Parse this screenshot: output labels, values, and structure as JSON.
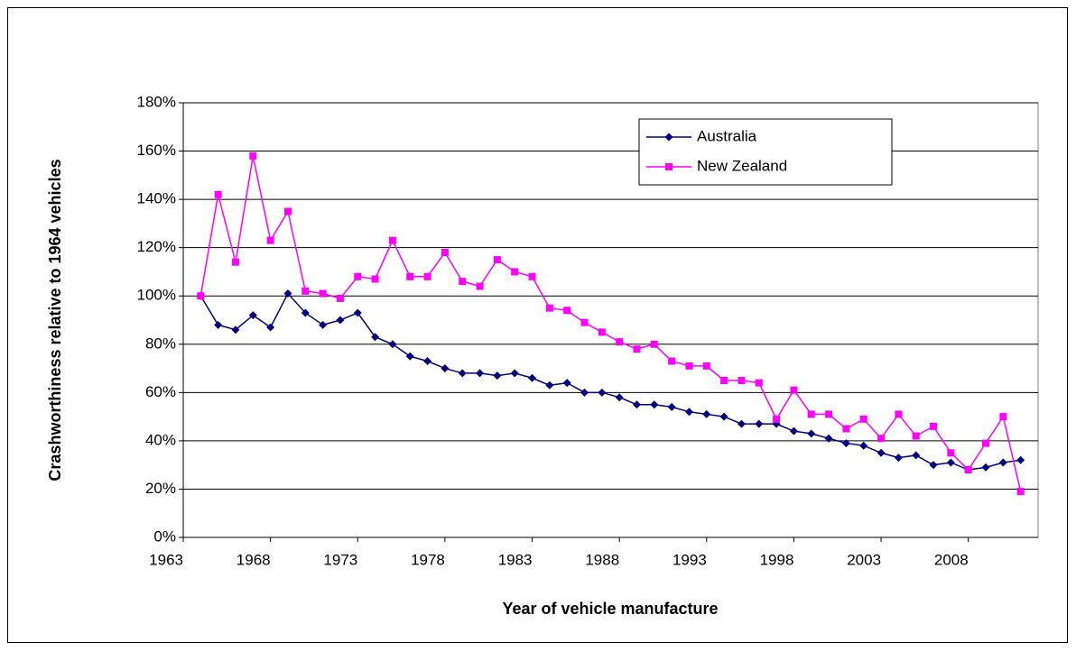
{
  "chart_data": {
    "type": "line",
    "xlabel": "Year of vehicle manufacture",
    "ylabel": "Crashworthiness relative to 1964 vehicles",
    "x": [
      1964,
      1965,
      1966,
      1967,
      1968,
      1969,
      1970,
      1971,
      1972,
      1973,
      1974,
      1975,
      1976,
      1977,
      1978,
      1979,
      1980,
      1981,
      1982,
      1983,
      1984,
      1985,
      1986,
      1987,
      1988,
      1989,
      1990,
      1991,
      1992,
      1993,
      1994,
      1995,
      1996,
      1997,
      1998,
      1999,
      2000,
      2001,
      2002,
      2003,
      2004,
      2005,
      2006,
      2007,
      2008,
      2009,
      2010,
      2011
    ],
    "series": [
      {
        "name": "Australia",
        "color": "#000080",
        "marker": "diamond",
        "values": [
          100,
          88,
          86,
          92,
          87,
          101,
          93,
          88,
          90,
          93,
          83,
          80,
          75,
          73,
          70,
          68,
          68,
          67,
          68,
          66,
          63,
          64,
          60,
          60,
          58,
          55,
          55,
          54,
          52,
          51,
          50,
          47,
          47,
          47,
          44,
          43,
          41,
          39,
          38,
          35,
          33,
          34,
          30,
          31,
          28,
          29,
          31,
          32
        ]
      },
      {
        "name": "New Zealand",
        "color": "#ff00ff",
        "marker": "square",
        "values": [
          100,
          142,
          114,
          158,
          123,
          135,
          102,
          101,
          99,
          108,
          107,
          123,
          108,
          108,
          118,
          106,
          104,
          115,
          110,
          108,
          95,
          94,
          89,
          85,
          81,
          78,
          80,
          73,
          71,
          71,
          65,
          65,
          64,
          49,
          61,
          51,
          51,
          45,
          49,
          41,
          51,
          42,
          46,
          35,
          28,
          39,
          50,
          19
        ]
      }
    ],
    "xlim": [
      1963,
      2012
    ],
    "xticks": [
      1963,
      1968,
      1973,
      1978,
      1983,
      1988,
      1993,
      1998,
      2003,
      2008
    ],
    "ylim": [
      0,
      180
    ],
    "yticks": [
      {
        "value": 0,
        "label": "0%"
      },
      {
        "value": 20,
        "label": "20%"
      },
      {
        "value": 40,
        "label": "40%"
      },
      {
        "value": 60,
        "label": "60%"
      },
      {
        "value": 80,
        "label": "80%"
      },
      {
        "value": 100,
        "label": "100%"
      },
      {
        "value": 120,
        "label": "120%"
      },
      {
        "value": 140,
        "label": "140%"
      },
      {
        "value": 160,
        "label": "160%"
      },
      {
        "value": 180,
        "label": "180%"
      }
    ],
    "grid": true,
    "legend": "upper right"
  }
}
